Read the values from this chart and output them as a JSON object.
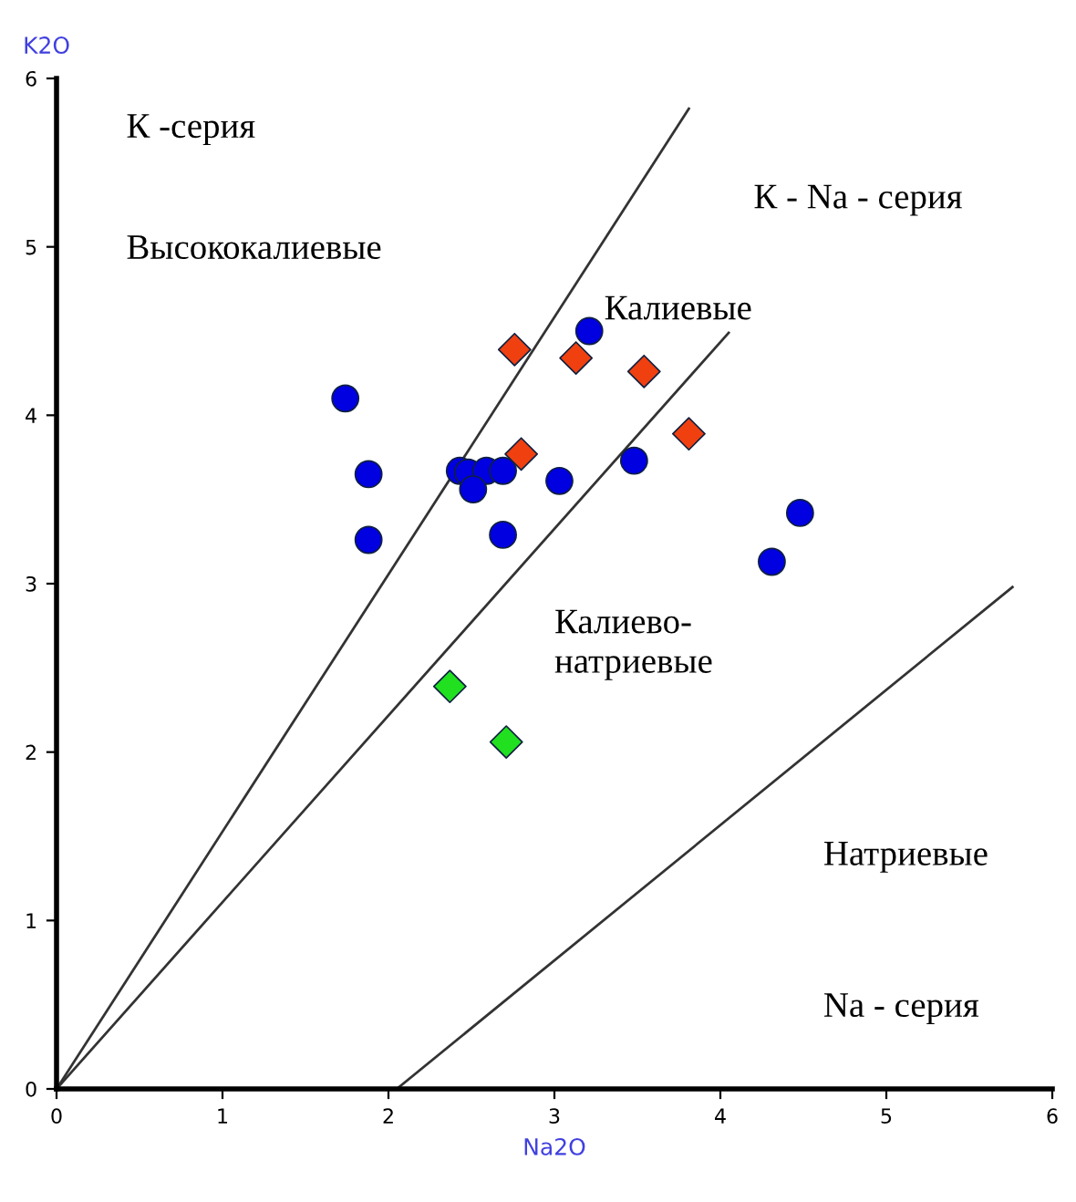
{
  "chart_data": {
    "type": "scatter",
    "xlabel": "Na2O",
    "ylabel": "K2O",
    "xlim": [
      0,
      6
    ],
    "ylim": [
      0,
      6
    ],
    "xticks": [
      0,
      1,
      2,
      3,
      4,
      5,
      6
    ],
    "yticks": [
      0,
      1,
      2,
      3,
      4,
      5,
      6
    ],
    "grid": false,
    "series": [
      {
        "type": "line",
        "color": "#333333",
        "marker": "none",
        "x": [
          0,
          3.81
        ],
        "values": [
          0,
          5.82
        ]
      },
      {
        "type": "line",
        "color": "#333333",
        "marker": "none",
        "x": [
          0,
          4.05
        ],
        "values": [
          0,
          4.49
        ]
      },
      {
        "type": "line",
        "color": "#333333",
        "marker": "none",
        "x": [
          2.05,
          5.76
        ],
        "values": [
          0,
          2.98
        ]
      },
      {
        "color": "#0000e0",
        "marker": "circle",
        "x": [
          1.74,
          1.88,
          1.88,
          2.43,
          2.48,
          2.59,
          2.69,
          2.51,
          2.69,
          3.03,
          3.48,
          3.21,
          4.31,
          4.48
        ],
        "values": [
          4.1,
          3.65,
          3.26,
          3.67,
          3.66,
          3.67,
          3.67,
          3.56,
          3.29,
          3.61,
          3.73,
          4.5,
          3.13,
          3.42
        ]
      },
      {
        "color": "#f04010",
        "marker": "diamond",
        "x": [
          2.76,
          3.13,
          3.54,
          3.81,
          2.8
        ],
        "values": [
          4.39,
          4.34,
          4.26,
          3.89,
          3.77
        ]
      },
      {
        "color": "#20e020",
        "marker": "diamond",
        "x": [
          2.37,
          2.71
        ],
        "values": [
          2.39,
          2.06
        ]
      }
    ],
    "annotations": [
      "К -серия",
      "Высококалиевые",
      "К - Na - серия",
      "Калиевые",
      "Калиево-\nнатриевые",
      "Натриевые",
      "Na - серия"
    ]
  }
}
